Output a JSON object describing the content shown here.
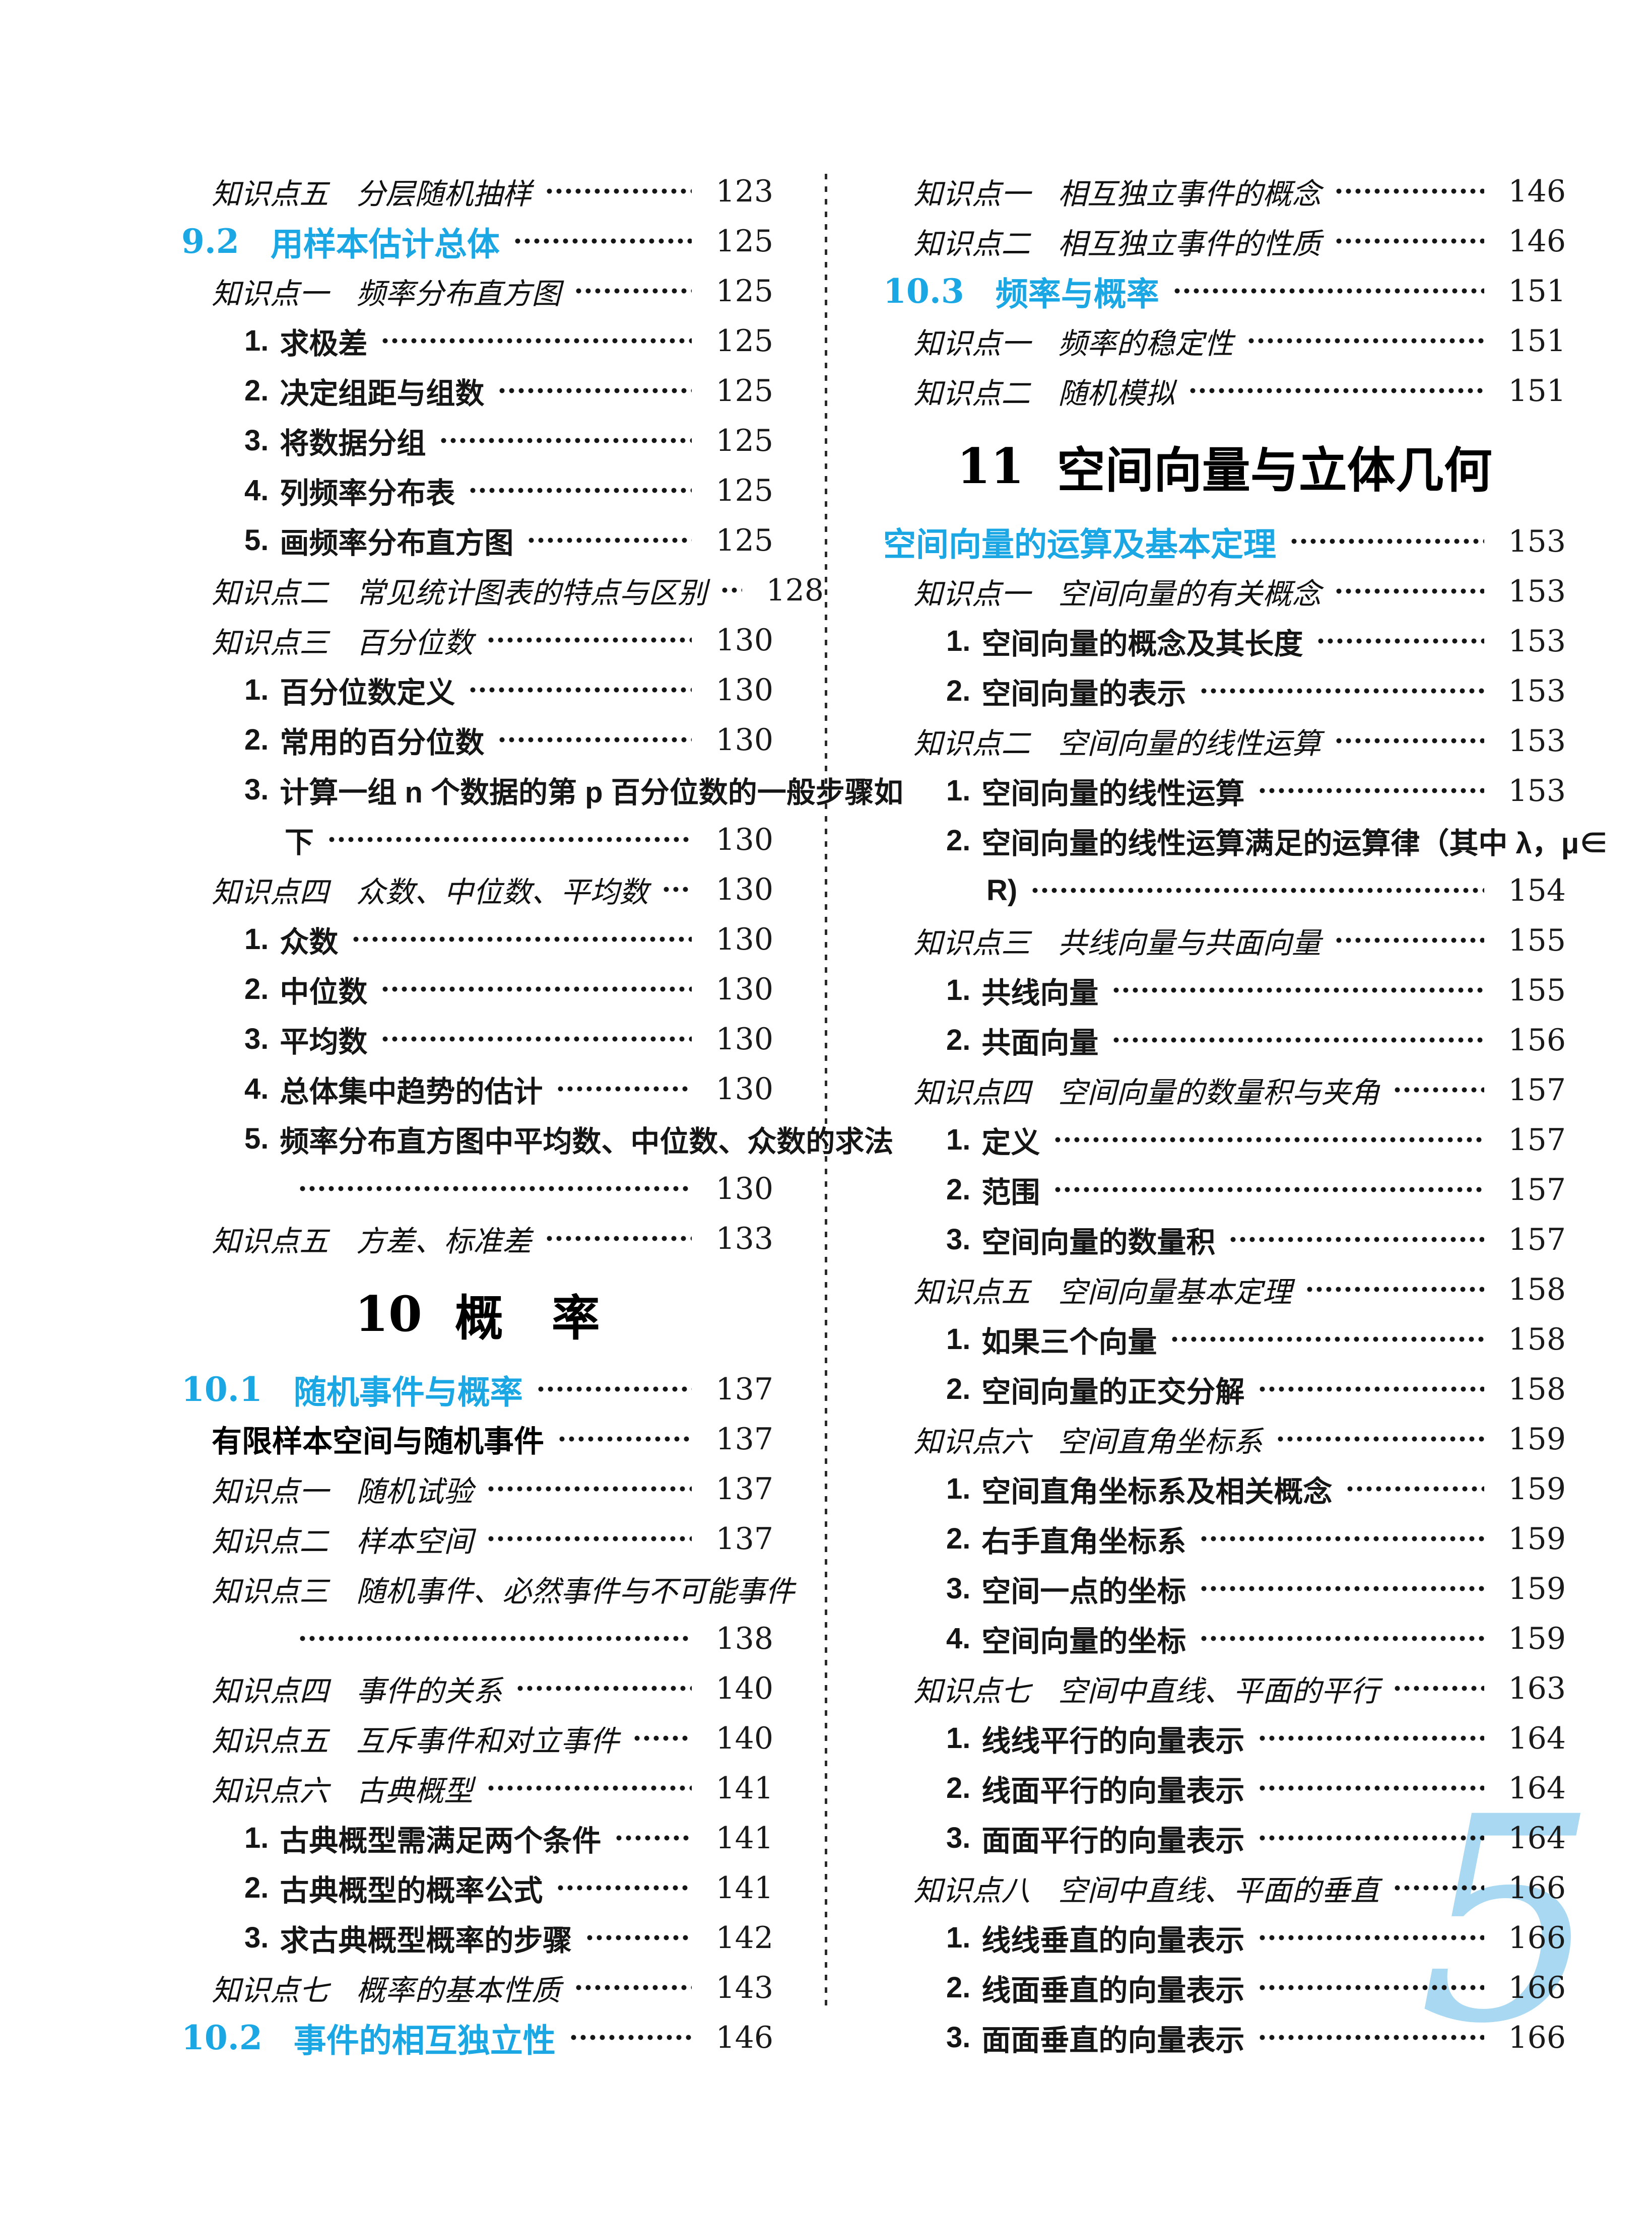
{
  "page": {
    "page_number": "5",
    "accent_color": "#1ba7e3",
    "folio_color": "#a8d8f2"
  },
  "toc": {
    "columns": [
      {
        "rows": [
          {
            "style": "kp",
            "label": "知识点五",
            "text": "分层随机抽样",
            "page": "123"
          },
          {
            "style": "section",
            "num": "9.2",
            "text": "用样本估计总体",
            "page": "125"
          },
          {
            "style": "kp",
            "label": "知识点一",
            "text": "频率分布直方图",
            "page": "125"
          },
          {
            "style": "item",
            "num": "1.",
            "text": "求极差",
            "page": "125"
          },
          {
            "style": "item",
            "num": "2.",
            "text": "决定组距与组数",
            "page": "125"
          },
          {
            "style": "item",
            "num": "3.",
            "text": "将数据分组",
            "page": "125"
          },
          {
            "style": "item",
            "num": "4.",
            "text": "列频率分布表",
            "page": "125"
          },
          {
            "style": "item",
            "num": "5.",
            "text": "画频率分布直方图",
            "page": "125"
          },
          {
            "style": "kp",
            "label": "知识点二",
            "text": "常见统计图表的特点与区别",
            "page": "128"
          },
          {
            "style": "kp",
            "label": "知识点三",
            "text": "百分位数",
            "page": "130"
          },
          {
            "style": "item",
            "num": "1.",
            "text": "百分位数定义",
            "page": "130"
          },
          {
            "style": "item",
            "num": "2.",
            "text": "常用的百分位数",
            "page": "130"
          },
          {
            "style": "item",
            "num": "3.",
            "text": "计算一组 n 个数据的第 p 百分位数的一般步骤如",
            "page": ""
          },
          {
            "style": "cont",
            "text": "下",
            "page": "130"
          },
          {
            "style": "kp",
            "label": "知识点四",
            "text": "众数、中位数、平均数",
            "page": "130"
          },
          {
            "style": "item",
            "num": "1.",
            "text": "众数",
            "page": "130"
          },
          {
            "style": "item",
            "num": "2.",
            "text": "中位数",
            "page": "130"
          },
          {
            "style": "item",
            "num": "3.",
            "text": "平均数",
            "page": "130"
          },
          {
            "style": "item",
            "num": "4.",
            "text": "总体集中趋势的估计",
            "page": "130"
          },
          {
            "style": "item",
            "num": "5.",
            "text": "频率分布直方图中平均数、中位数、众数的求法",
            "page": ""
          },
          {
            "style": "cont",
            "text": "",
            "page": "130"
          },
          {
            "style": "kp",
            "label": "知识点五",
            "text": "方差、标准差",
            "page": "133"
          },
          {
            "style": "chapter",
            "num": "10",
            "text": "概　率",
            "page": ""
          },
          {
            "style": "section",
            "num": "10.1",
            "text": "随机事件与概率",
            "page": "137"
          },
          {
            "style": "subheader",
            "text": "有限样本空间与随机事件",
            "page": "137"
          },
          {
            "style": "kp",
            "label": "知识点一",
            "text": "随机试验",
            "page": "137"
          },
          {
            "style": "kp",
            "label": "知识点二",
            "text": "样本空间",
            "page": "137"
          },
          {
            "style": "kp",
            "label": "知识点三",
            "text": "随机事件、必然事件与不可能事件",
            "page": ""
          },
          {
            "style": "cont",
            "text": "",
            "page": "138"
          },
          {
            "style": "kp",
            "label": "知识点四",
            "text": "事件的关系",
            "page": "140"
          },
          {
            "style": "kp",
            "label": "知识点五",
            "text": "互斥事件和对立事件",
            "page": "140"
          },
          {
            "style": "kp",
            "label": "知识点六",
            "text": "古典概型",
            "page": "141"
          },
          {
            "style": "item",
            "num": "1.",
            "text": "古典概型需满足两个条件",
            "page": "141"
          },
          {
            "style": "item",
            "num": "2.",
            "text": "古典概型的概率公式",
            "page": "141"
          },
          {
            "style": "item",
            "num": "3.",
            "text": "求古典概型概率的步骤",
            "page": "142"
          },
          {
            "style": "kp",
            "label": "知识点七",
            "text": "概率的基本性质",
            "page": "143"
          },
          {
            "style": "section",
            "num": "10.2",
            "text": "事件的相互独立性",
            "page": "146"
          }
        ]
      },
      {
        "rows": [
          {
            "style": "kp",
            "label": "知识点一",
            "text": "相互独立事件的概念",
            "page": "146"
          },
          {
            "style": "kp",
            "label": "知识点二",
            "text": "相互独立事件的性质",
            "page": "146"
          },
          {
            "style": "section",
            "num": "10.3",
            "text": "频率与概率",
            "page": "151"
          },
          {
            "style": "kp",
            "label": "知识点一",
            "text": "频率的稳定性",
            "page": "151"
          },
          {
            "style": "kp",
            "label": "知识点二",
            "text": "随机模拟",
            "page": "151"
          },
          {
            "style": "chapter",
            "num": "11",
            "text": "空间向量与立体几何",
            "page": ""
          },
          {
            "style": "section",
            "num": "",
            "text": "空间向量的运算及基本定理",
            "page": "153"
          },
          {
            "style": "kp",
            "label": "知识点一",
            "text": "空间向量的有关概念",
            "page": "153"
          },
          {
            "style": "item",
            "num": "1.",
            "text": "空间向量的概念及其长度",
            "page": "153"
          },
          {
            "style": "item",
            "num": "2.",
            "text": "空间向量的表示",
            "page": "153"
          },
          {
            "style": "kp",
            "label": "知识点二",
            "text": "空间向量的线性运算",
            "page": "153"
          },
          {
            "style": "item",
            "num": "1.",
            "text": "空间向量的线性运算",
            "page": "153"
          },
          {
            "style": "item",
            "num": "2.",
            "text": "空间向量的线性运算满足的运算律（其中 λ，μ∈",
            "page": ""
          },
          {
            "style": "cont",
            "text": "R)",
            "page": "154"
          },
          {
            "style": "kp",
            "label": "知识点三",
            "text": "共线向量与共面向量",
            "page": "155"
          },
          {
            "style": "item",
            "num": "1.",
            "text": "共线向量",
            "page": "155"
          },
          {
            "style": "item",
            "num": "2.",
            "text": "共面向量",
            "page": "156"
          },
          {
            "style": "kp",
            "label": "知识点四",
            "text": "空间向量的数量积与夹角",
            "page": "157"
          },
          {
            "style": "item",
            "num": "1.",
            "text": "定义",
            "page": "157"
          },
          {
            "style": "item",
            "num": "2.",
            "text": "范围",
            "page": "157"
          },
          {
            "style": "item",
            "num": "3.",
            "text": "空间向量的数量积",
            "page": "157"
          },
          {
            "style": "kp",
            "label": "知识点五",
            "text": "空间向量基本定理",
            "page": "158"
          },
          {
            "style": "item",
            "num": "1.",
            "text": "如果三个向量",
            "page": "158"
          },
          {
            "style": "item",
            "num": "2.",
            "text": "空间向量的正交分解",
            "page": "158"
          },
          {
            "style": "kp",
            "label": "知识点六",
            "text": "空间直角坐标系",
            "page": "159"
          },
          {
            "style": "item",
            "num": "1.",
            "text": "空间直角坐标系及相关概念",
            "page": "159"
          },
          {
            "style": "item",
            "num": "2.",
            "text": "右手直角坐标系",
            "page": "159"
          },
          {
            "style": "item",
            "num": "3.",
            "text": "空间一点的坐标",
            "page": "159"
          },
          {
            "style": "item",
            "num": "4.",
            "text": "空间向量的坐标",
            "page": "159"
          },
          {
            "style": "kp",
            "label": "知识点七",
            "text": "空间中直线、平面的平行",
            "page": "163"
          },
          {
            "style": "item",
            "num": "1.",
            "text": "线线平行的向量表示",
            "page": "164"
          },
          {
            "style": "item",
            "num": "2.",
            "text": "线面平行的向量表示",
            "page": "164"
          },
          {
            "style": "item",
            "num": "3.",
            "text": "面面平行的向量表示",
            "page": "164"
          },
          {
            "style": "kp",
            "label": "知识点八",
            "text": "空间中直线、平面的垂直",
            "page": "166"
          },
          {
            "style": "item",
            "num": "1.",
            "text": "线线垂直的向量表示",
            "page": "166"
          },
          {
            "style": "item",
            "num": "2.",
            "text": "线面垂直的向量表示",
            "page": "166"
          },
          {
            "style": "item",
            "num": "3.",
            "text": "面面垂直的向量表示",
            "page": "166"
          }
        ]
      }
    ]
  }
}
